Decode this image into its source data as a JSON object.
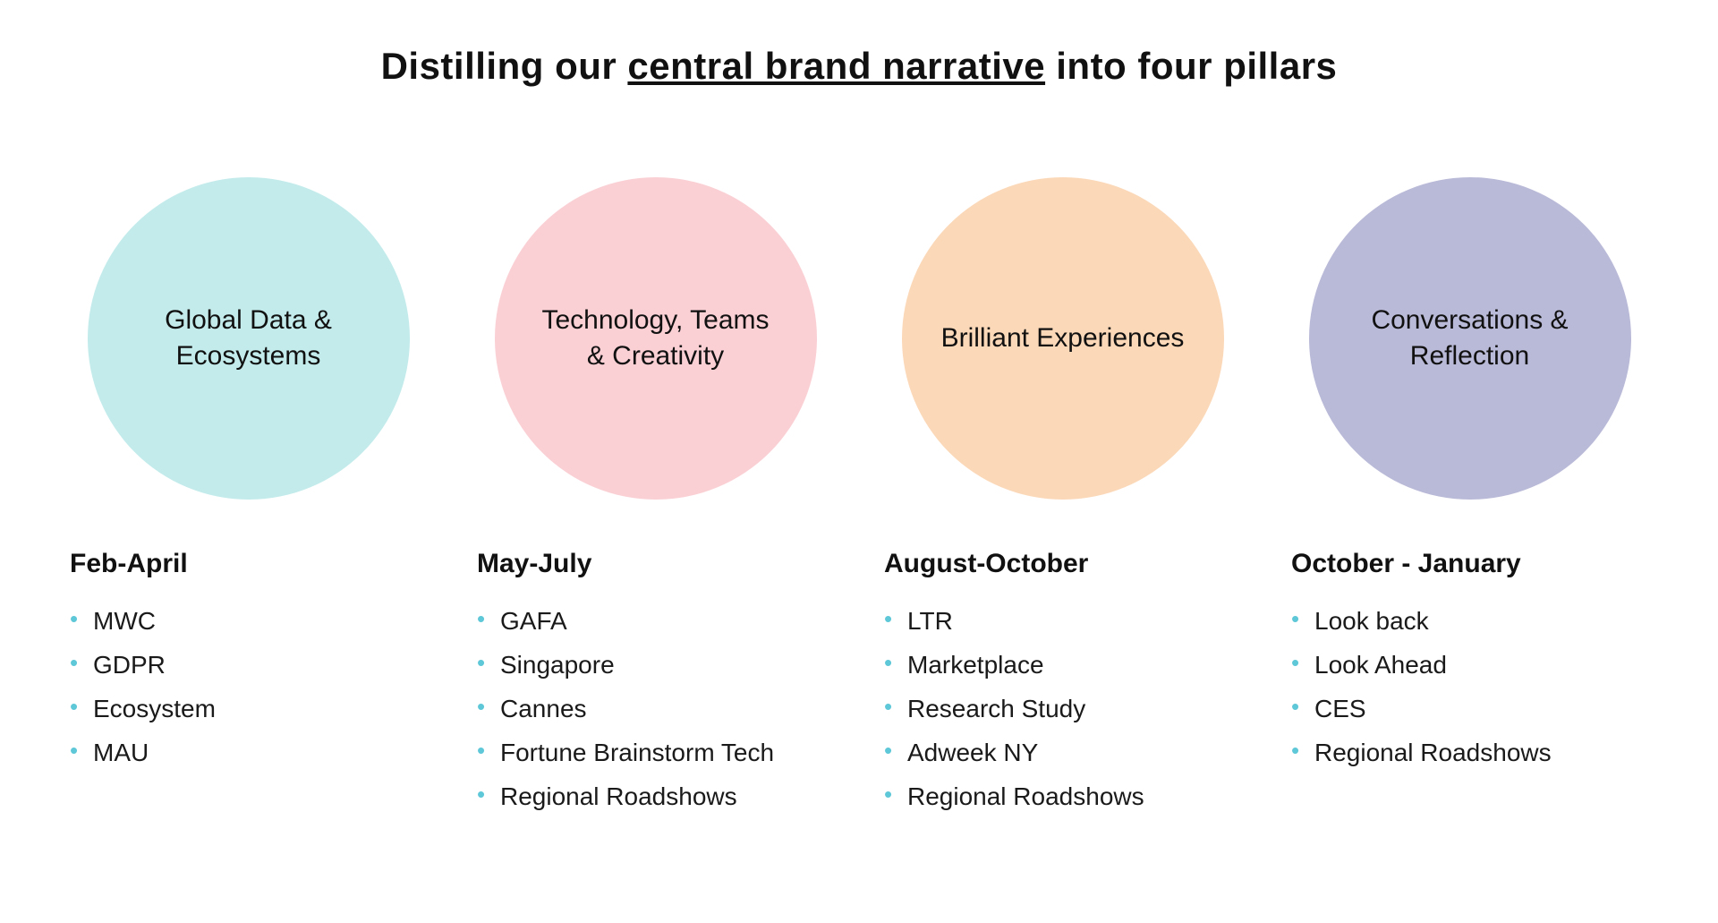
{
  "title": {
    "pre": "Distilling our ",
    "underlined": "central brand narrative",
    "post": " into four pillars"
  },
  "bullet_color": "#5ec8d8",
  "pillars": [
    {
      "label": "Global Data & Ecosystems",
      "circle_color": "#c3ebeb",
      "period": "Feb-April",
      "items": [
        "MWC",
        "GDPR",
        "Ecosystem",
        "MAU"
      ]
    },
    {
      "label": "Technology, Teams & Creativity",
      "circle_color": "#fad0d5",
      "period": "May-July",
      "items": [
        "GAFA",
        "Singapore",
        "Cannes",
        "Fortune Brainstorm Tech",
        "Regional Roadshows"
      ]
    },
    {
      "label": "Brilliant Experiences",
      "circle_color": "#fbd8b8",
      "period": "August-October",
      "items": [
        "LTR",
        "Marketplace",
        "Research Study",
        "Adweek NY",
        "Regional Roadshows"
      ]
    },
    {
      "label": "Conversations & Reflection",
      "circle_color": "#b9b9d8",
      "period": "October - January",
      "items": [
        "Look back",
        "Look Ahead",
        "CES",
        "Regional Roadshows"
      ]
    }
  ]
}
